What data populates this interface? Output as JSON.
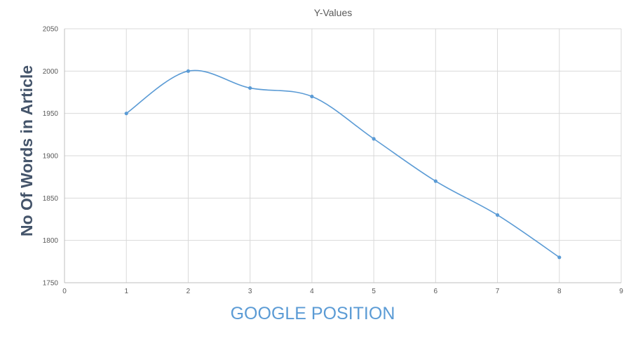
{
  "colors": {
    "series": "#5b9bd5",
    "xlabel": "#5b9bd5",
    "ylabel": "#44546a"
  },
  "chart_data": {
    "type": "scatter",
    "smooth": true,
    "title": "Y-Values",
    "xlabel": "GOOGLE POSITION",
    "ylabel": "No Of Words in Article",
    "xlim": [
      0,
      9
    ],
    "ylim": [
      1750,
      2050
    ],
    "xticks": [
      0,
      1,
      2,
      3,
      4,
      5,
      6,
      7,
      8,
      9
    ],
    "yticks": [
      1750,
      1800,
      1850,
      1900,
      1950,
      2000,
      2050
    ],
    "grid": true,
    "legend": "none",
    "series": [
      {
        "x": [
          1,
          2,
          3,
          4,
          5,
          6,
          7,
          8
        ],
        "y": [
          1950,
          2000,
          1980,
          1970,
          1920,
          1870,
          1830,
          1780
        ]
      }
    ]
  }
}
